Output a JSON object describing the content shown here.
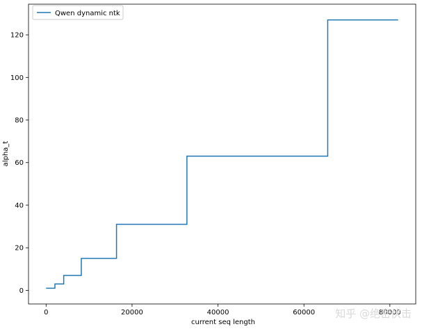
{
  "chart_data": {
    "type": "line",
    "xlabel": "current seq length",
    "ylabel": "alpha_t",
    "xlim": [
      -4096,
      86016
    ],
    "ylim": [
      -6.4,
      134.4
    ],
    "xticks": [
      0,
      20000,
      40000,
      60000,
      80000
    ],
    "yticks": [
      0,
      20,
      40,
      60,
      80,
      100,
      120
    ],
    "grid": false,
    "legend_position": "top-left",
    "series": [
      {
        "name": "Qwen dynamic ntk",
        "color": "#1f77b4",
        "step": true,
        "x": [
          0,
          2048,
          2048,
          4096,
          4096,
          8192,
          8192,
          16384,
          16384,
          32768,
          32768,
          65536,
          65536,
          81920
        ],
        "y": [
          1,
          1,
          3,
          3,
          7,
          7,
          15,
          15,
          31,
          31,
          63,
          63,
          127,
          127
        ]
      }
    ]
  },
  "watermark": "知乎 @绝密伏击"
}
